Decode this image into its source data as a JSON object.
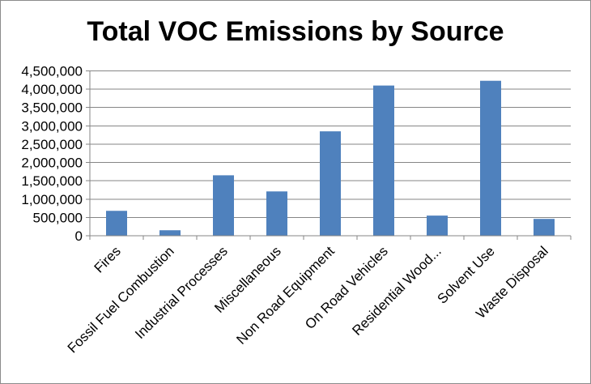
{
  "chart_data": {
    "type": "bar",
    "title": "Total VOC Emissions by Source",
    "xlabel": "",
    "ylabel": "",
    "categories": [
      "Fires",
      "Fossil Fuel Combustion",
      "Industrial Processes",
      "Miscellaneous",
      "Non Road Equipment",
      "On Road Vehicles",
      "Residential Wood...",
      "Solvent Use",
      "Waste Disposal"
    ],
    "values": [
      680000,
      150000,
      1650000,
      1210000,
      2850000,
      4100000,
      550000,
      4230000,
      460000
    ],
    "ylim": [
      0,
      4500000
    ],
    "yticks": [
      0,
      500000,
      1000000,
      1500000,
      2000000,
      2500000,
      3000000,
      3500000,
      4000000,
      4500000
    ],
    "ytick_labels": [
      "0",
      "500,000",
      "1,000,000",
      "1,500,000",
      "2,000,000",
      "2,500,000",
      "3,000,000",
      "3,500,000",
      "4,000,000",
      "4,500,000"
    ],
    "grid": true,
    "legend": "none",
    "bar_color": "#4f81bd",
    "grid_color": "#868686"
  }
}
